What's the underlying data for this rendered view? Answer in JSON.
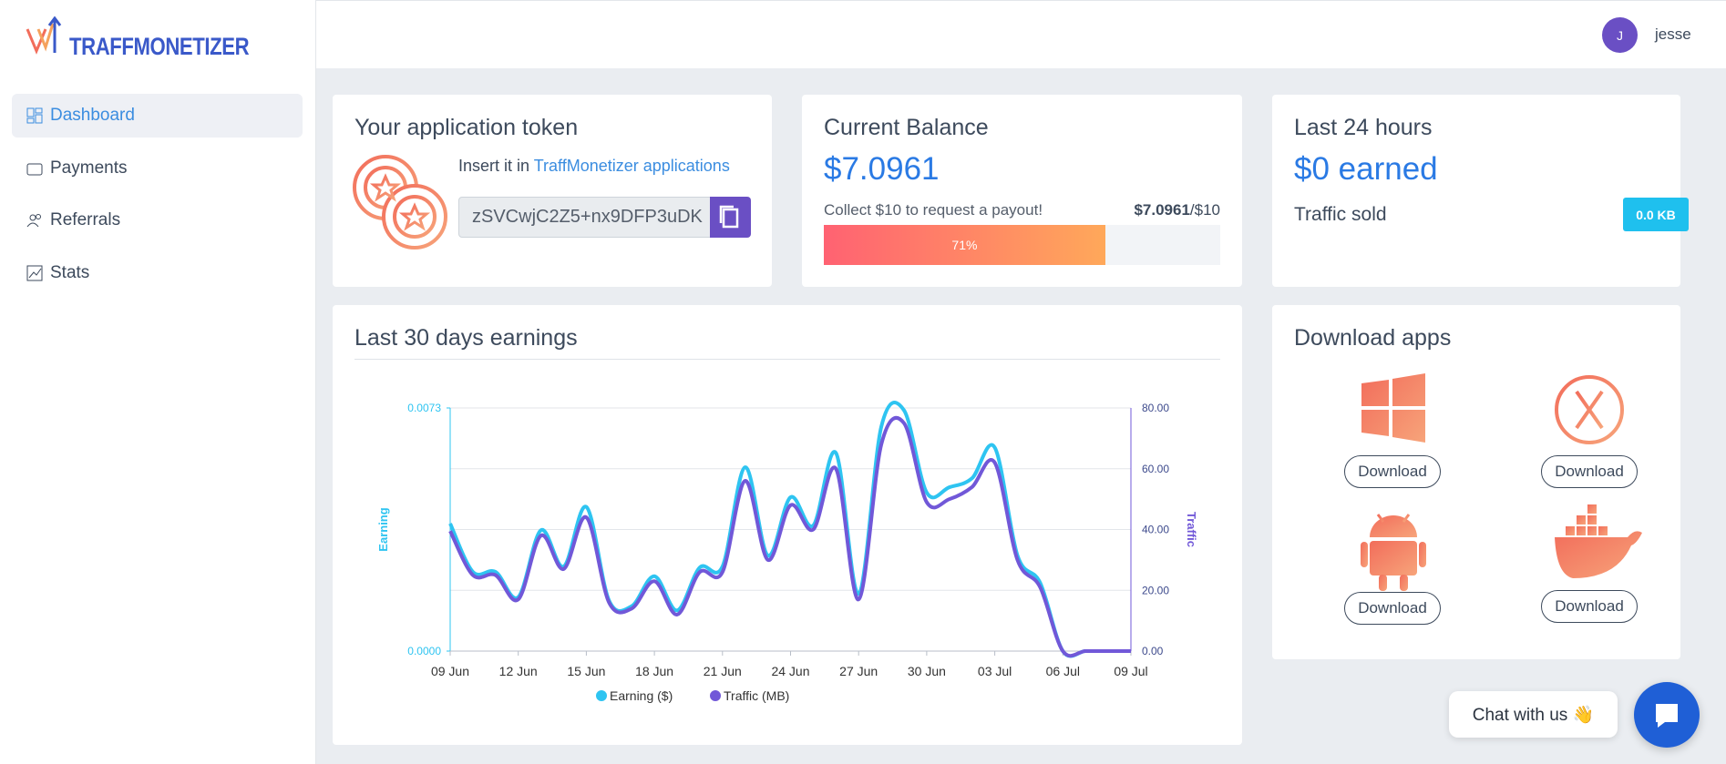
{
  "brand": "TRAFFMONETIZER",
  "nav": [
    "Dashboard",
    "Payments",
    "Referrals",
    "Stats"
  ],
  "user": {
    "initial": "J",
    "name": "jesse"
  },
  "token_card": {
    "title": "Your application token",
    "hint": "Insert it in",
    "hint_link": "TraffMonetizer applications",
    "token": "zSVCwjC2Z5+nx9DFP3uDK"
  },
  "balance_card": {
    "title": "Current Balance",
    "balance": "$7.0961",
    "note": "Collect $10 to request a payout!",
    "current": "$7.0961",
    "target": "/$10",
    "progress": {
      "value": 71,
      "label": "71%"
    }
  },
  "last24_card": {
    "title": "Last 24 hours",
    "earned": "$0 earned",
    "traffic_label": "Traffic sold",
    "traffic_value": "0.0 KB"
  },
  "chart_data": {
    "type": "line",
    "title": "Last 30 days earnings",
    "categories": [
      "09 Jun",
      null,
      null,
      "12 Jun",
      null,
      null,
      "15 Jun",
      null,
      null,
      "18 Jun",
      null,
      null,
      "21 Jun",
      null,
      null,
      "24 Jun",
      null,
      null,
      "27 Jun",
      null,
      null,
      "30 Jun",
      null,
      null,
      "03 Jul",
      null,
      null,
      "06 Jul",
      null,
      null,
      "09 Jul"
    ],
    "ylabel": "Earning",
    "y2label": "Traffic",
    "ylim": [
      0,
      0.0073
    ],
    "yticks": [
      {
        "value": 0,
        "label": "0.0000"
      },
      0.0073
    ],
    "y2lim": [
      0,
      80
    ],
    "y2ticks": [
      {
        "value": 0,
        "label": "0.00"
      },
      {
        "value": 20,
        "label": "20.00"
      },
      {
        "value": 40,
        "label": "40.00"
      },
      {
        "value": 60,
        "label": "60.00"
      },
      {
        "value": 80,
        "label": "80.00"
      }
    ],
    "grid": true,
    "series": [
      {
        "name": "Earning ($)",
        "color": "#2ec4f1",
        "values": [
          0.00383,
          0.00238,
          0.00238,
          0.00162,
          0.00363,
          0.00254,
          0.00433,
          0.00152,
          0.00135,
          0.00225,
          0.00122,
          0.00251,
          0.00254,
          0.00552,
          0.00287,
          0.00462,
          0.00377,
          0.00595,
          0.00172,
          0.00674,
          0.00723,
          0.00476,
          0.00492,
          0.00519,
          0.00611,
          0.00287,
          0.00205,
          0,
          0,
          0,
          0
        ]
      },
      {
        "name": "Traffic (MB)",
        "color": "#7158d8",
        "axis": "y2",
        "values": [
          39.5,
          25,
          25,
          17,
          38,
          27,
          44,
          16,
          14,
          23,
          12,
          26,
          26,
          56,
          30,
          48,
          40,
          60,
          17,
          68,
          75,
          49,
          50,
          54,
          62,
          30,
          21,
          0,
          0,
          0,
          0
        ]
      }
    ]
  },
  "downloads": {
    "title": "Download apps",
    "buttons": [
      "Download",
      "Download",
      "Download",
      "Download"
    ]
  },
  "chat": "Chat with us 👋"
}
